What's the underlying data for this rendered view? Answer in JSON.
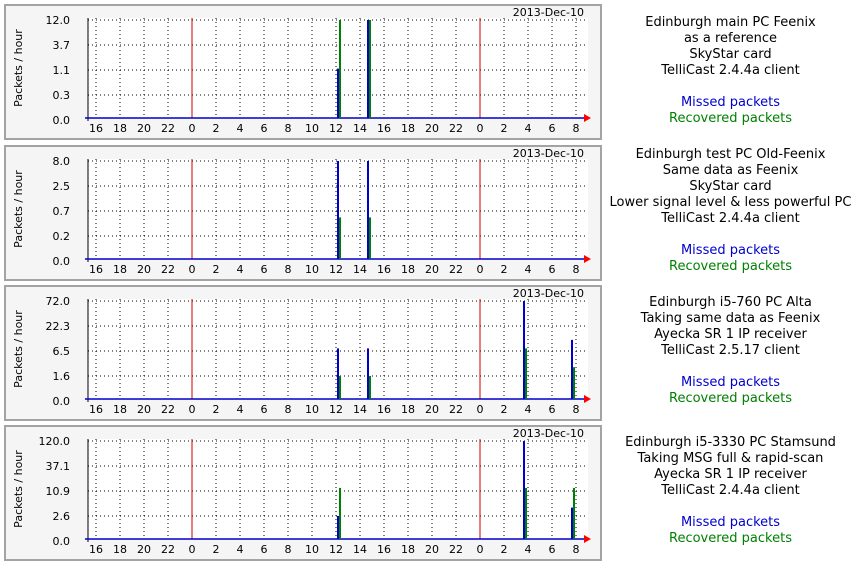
{
  "colors": {
    "missed": "#0000cc",
    "recovered": "#008000",
    "day_boundary": "#cc0000",
    "grid": "#000000",
    "axis": "#000000",
    "arrow": "#ff0000",
    "background": "#ffffff",
    "frame": "#f5f5f5"
  },
  "legend": {
    "missed_label": "Missed packets",
    "recovered_label": "Recovered packets"
  },
  "chart_data": [
    {
      "type": "line",
      "date_label": "2013-Dec-10",
      "ylabel": "Packets / hour",
      "y_scale": "log",
      "y_ticks": [
        "12.0",
        "3.7",
        "1.1",
        "0.3",
        "0.0"
      ],
      "x_tick_labels": [
        "16",
        "18",
        "20",
        "22",
        "0",
        "2",
        "4",
        "6",
        "8",
        "10",
        "12",
        "14",
        "16",
        "18",
        "20",
        "22",
        "0",
        "2",
        "4",
        "6",
        "8"
      ],
      "day_boundaries_at_tick_index": [
        4,
        16
      ],
      "grid": true,
      "series": [
        {
          "name": "Missed packets",
          "points": [
            {
              "x": "12:00",
              "y": 1.1
            },
            {
              "x": "14:30",
              "y": 12.0
            }
          ]
        },
        {
          "name": "Recovered packets",
          "points": [
            {
              "x": "12:00",
              "y": 12.0
            },
            {
              "x": "14:30",
              "y": 12.0
            }
          ]
        }
      ]
    },
    {
      "type": "line",
      "date_label": "2013-Dec-10",
      "ylabel": "Packets / hour",
      "y_scale": "log",
      "y_ticks": [
        "8.0",
        "2.5",
        "0.7",
        "0.2",
        "0.0"
      ],
      "x_tick_labels": [
        "16",
        "18",
        "20",
        "22",
        "0",
        "2",
        "4",
        "6",
        "8",
        "10",
        "12",
        "14",
        "16",
        "18",
        "20",
        "22",
        "0",
        "2",
        "4",
        "6",
        "8"
      ],
      "day_boundaries_at_tick_index": [
        4,
        16
      ],
      "grid": true,
      "series": [
        {
          "name": "Missed packets",
          "points": [
            {
              "x": "12:00",
              "y": 8.0
            },
            {
              "x": "14:30",
              "y": 8.0
            }
          ]
        },
        {
          "name": "Recovered packets",
          "points": [
            {
              "x": "12:00",
              "y": 0.5
            },
            {
              "x": "14:30",
              "y": 0.5
            }
          ]
        }
      ]
    },
    {
      "type": "line",
      "date_label": "2013-Dec-10",
      "ylabel": "Packets / hour",
      "y_scale": "log",
      "y_ticks": [
        "72.0",
        "22.3",
        "6.5",
        "1.6",
        "0.0"
      ],
      "x_tick_labels": [
        "16",
        "18",
        "20",
        "22",
        "0",
        "2",
        "4",
        "6",
        "8",
        "10",
        "12",
        "14",
        "16",
        "18",
        "20",
        "22",
        "0",
        "2",
        "4",
        "6",
        "8"
      ],
      "day_boundaries_at_tick_index": [
        4,
        16
      ],
      "grid": true,
      "series": [
        {
          "name": "Missed packets",
          "points": [
            {
              "x": "12:00",
              "y": 6.5
            },
            {
              "x": "14:30",
              "y": 6.5
            },
            {
              "x": "03:30",
              "y": 72.0
            },
            {
              "x": "07:30",
              "y": 10.0
            }
          ]
        },
        {
          "name": "Recovered packets",
          "points": [
            {
              "x": "12:00",
              "y": 1.6
            },
            {
              "x": "14:30",
              "y": 1.6
            },
            {
              "x": "03:30",
              "y": 6.5
            },
            {
              "x": "07:30",
              "y": 2.5
            }
          ]
        }
      ]
    },
    {
      "type": "line",
      "date_label": "2013-Dec-10",
      "ylabel": "Packets / hour",
      "y_scale": "log",
      "y_ticks": [
        "120.0",
        "37.1",
        "10.9",
        "2.6",
        "0.0"
      ],
      "x_tick_labels": [
        "16",
        "18",
        "20",
        "22",
        "0",
        "2",
        "4",
        "6",
        "8",
        "10",
        "12",
        "14",
        "16",
        "18",
        "20",
        "22",
        "0",
        "2",
        "4",
        "6",
        "8"
      ],
      "day_boundaries_at_tick_index": [
        4,
        16
      ],
      "grid": true,
      "series": [
        {
          "name": "Missed packets",
          "points": [
            {
              "x": "12:00",
              "y": 2.6
            },
            {
              "x": "03:30",
              "y": 120.0
            },
            {
              "x": "07:30",
              "y": 4.0
            }
          ]
        },
        {
          "name": "Recovered packets",
          "points": [
            {
              "x": "12:00",
              "y": 10.9
            },
            {
              "x": "03:30",
              "y": 10.9
            },
            {
              "x": "07:30",
              "y": 10.9
            }
          ]
        }
      ]
    }
  ],
  "descriptions": [
    {
      "lines": [
        "Edinburgh main PC Feenix",
        "as a reference",
        "SkyStar card",
        "TelliCast 2.4.4a client"
      ]
    },
    {
      "lines": [
        "Edinburgh test PC Old-Feenix",
        "Same data as Feenix",
        "SkyStar card",
        "Lower signal level & less powerful PC",
        "TelliCast 2.4.4a client"
      ]
    },
    {
      "lines": [
        "Edinburgh i5-760 PC Alta",
        "Taking same data as Feenix",
        "Ayecka SR 1 IP receiver",
        "TelliCast 2.5.17 client"
      ]
    },
    {
      "lines": [
        "Edinburgh i5-3330 PC Stamsund",
        "Taking MSG full & rapid-scan",
        "Ayecka SR 1 IP receiver",
        "TelliCast 2.4.4a client"
      ]
    }
  ]
}
